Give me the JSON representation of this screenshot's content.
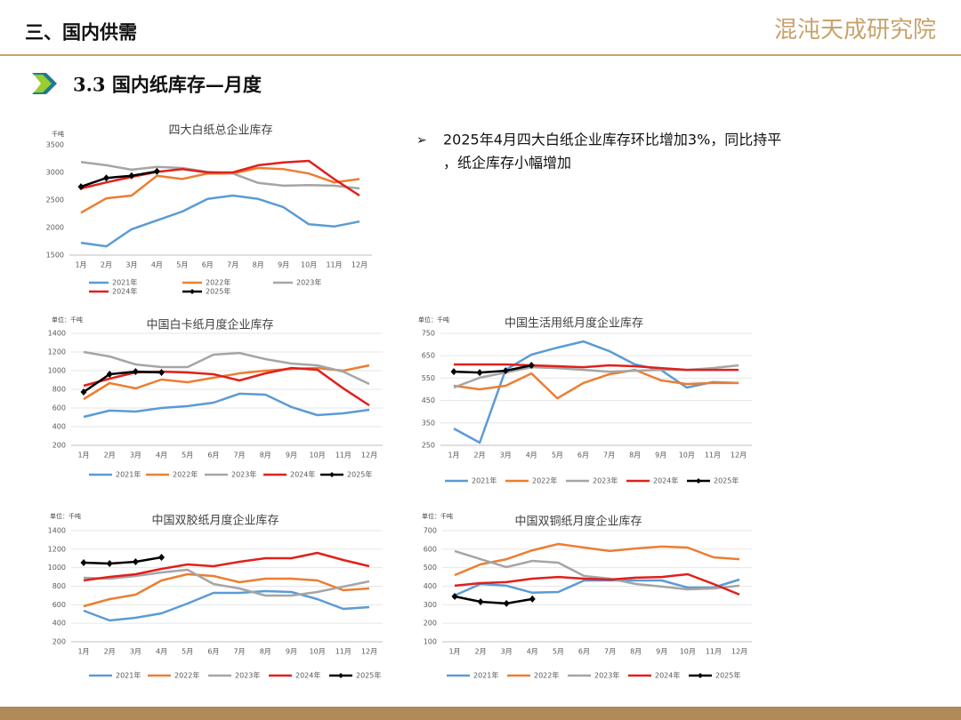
{
  "header": {
    "section": "三、国内供需",
    "brand": "混沌天成研究院",
    "subtitle": "3.3 国内纸库存—月度",
    "note": [
      "2025年4月四大白纸企业库存环比增加3%，同比持平",
      "，纸企库存小幅增加"
    ]
  },
  "chart_data": [
    {
      "type": "line",
      "title": "四大白纸总企业库存",
      "unit": "千吨",
      "categories": [
        "1月",
        "2月",
        "3月",
        "4月",
        "5月",
        "6月",
        "7月",
        "8月",
        "9月",
        "10月",
        "11月",
        "12月"
      ],
      "ylim": [
        1500,
        3500
      ],
      "yticks": [
        1500,
        2000,
        2500,
        3000,
        3500
      ],
      "grid": false,
      "series": [
        {
          "name": "2021年",
          "color": "#5b9bd5",
          "values": [
            1725,
            1660,
            1970,
            2130,
            2290,
            2520,
            2580,
            2520,
            2370,
            2060,
            2020,
            2110
          ]
        },
        {
          "name": "2022年",
          "color": "#ed7d31",
          "values": [
            2270,
            2530,
            2580,
            2940,
            2880,
            2980,
            2980,
            3080,
            3060,
            2980,
            2820,
            2880
          ]
        },
        {
          "name": "2023年",
          "color": "#a5a5a5",
          "values": [
            3190,
            3130,
            3050,
            3100,
            3080,
            3010,
            2980,
            2810,
            2760,
            2770,
            2760,
            2710
          ]
        },
        {
          "name": "2024年",
          "color": "#e0201b",
          "values": [
            2710,
            2820,
            2920,
            3010,
            3060,
            3000,
            3000,
            3130,
            3180,
            3210,
            2880,
            2580
          ]
        },
        {
          "name": "2025年",
          "color": "#000000",
          "values": [
            2740,
            2900,
            2940,
            3020,
            null,
            null,
            null,
            null,
            null,
            null,
            null,
            null
          ]
        }
      ]
    },
    {
      "type": "line",
      "title": "中国白卡纸月度企业库存",
      "unit": "单位：千吨",
      "categories": [
        "1月",
        "2月",
        "3月",
        "4月",
        "5月",
        "6月",
        "7月",
        "8月",
        "9月",
        "10月",
        "11月",
        "12月"
      ],
      "ylim": [
        200,
        1400
      ],
      "yticks": [
        200,
        400,
        600,
        800,
        1000,
        1200,
        1400
      ],
      "grid": true,
      "series": [
        {
          "name": "2021年",
          "color": "#5b9bd5",
          "values": [
            505,
            572,
            562,
            600,
            620,
            657,
            753,
            743,
            610,
            524,
            543,
            581
          ]
        },
        {
          "name": "2022年",
          "color": "#ed7d31",
          "values": [
            695,
            867,
            810,
            905,
            876,
            924,
            971,
            1000,
            1019,
            1029,
            1000,
            1057
          ]
        },
        {
          "name": "2023年",
          "color": "#a5a5a5",
          "values": [
            1200,
            1152,
            1067,
            1038,
            1038,
            1171,
            1190,
            1124,
            1076,
            1057,
            990,
            857
          ]
        },
        {
          "name": "2024年",
          "color": "#e0201b",
          "values": [
            838,
            914,
            981,
            990,
            981,
            962,
            895,
            971,
            1029,
            1010,
            810,
            629
          ]
        },
        {
          "name": "2025年",
          "color": "#000000",
          "values": [
            771,
            962,
            990,
            981,
            null,
            null,
            null,
            null,
            null,
            null,
            null,
            null
          ]
        }
      ]
    },
    {
      "type": "line",
      "title": "中国生活用纸月度企业库存",
      "unit": "单位：千吨",
      "categories": [
        "1月",
        "2月",
        "3月",
        "4月",
        "5月",
        "6月",
        "7月",
        "8月",
        "9月",
        "10月",
        "11月",
        "12月"
      ],
      "ylim": [
        250,
        750
      ],
      "yticks": [
        250,
        350,
        450,
        550,
        650,
        750
      ],
      "grid": true,
      "series": [
        {
          "name": "2021年",
          "color": "#5b9bd5",
          "values": [
            325,
            262,
            587,
            655,
            686,
            714,
            671,
            611,
            587,
            508,
            532,
            528
          ]
        },
        {
          "name": "2022年",
          "color": "#ed7d31",
          "values": [
            516,
            500,
            516,
            571,
            460,
            528,
            567,
            587,
            540,
            524,
            528,
            528
          ]
        },
        {
          "name": "2023年",
          "color": "#a5a5a5",
          "values": [
            508,
            552,
            575,
            599,
            595,
            587,
            579,
            583,
            587,
            587,
            595,
            607
          ]
        },
        {
          "name": "2024年",
          "color": "#e0201b",
          "values": [
            611,
            611,
            611,
            607,
            603,
            599,
            607,
            603,
            595,
            587,
            587,
            587
          ]
        },
        {
          "name": "2025年",
          "color": "#000000",
          "values": [
            579,
            575,
            583,
            607,
            null,
            null,
            null,
            null,
            null,
            null,
            null,
            null
          ]
        }
      ]
    },
    {
      "type": "line",
      "title": "中国双胶纸月度企业库存",
      "unit": "单位：千吨",
      "categories": [
        "1月",
        "2月",
        "3月",
        "4月",
        "5月",
        "6月",
        "7月",
        "8月",
        "9月",
        "10月",
        "11月",
        "12月"
      ],
      "ylim": [
        200,
        1400
      ],
      "yticks": [
        200,
        400,
        600,
        800,
        1000,
        1200,
        1400
      ],
      "grid": true,
      "series": [
        {
          "name": "2021年",
          "color": "#5b9bd5",
          "values": [
            536,
            430,
            459,
            507,
            613,
            728,
            728,
            747,
            738,
            661,
            555,
            574
          ]
        },
        {
          "name": "2022年",
          "color": "#ed7d31",
          "values": [
            584,
            661,
            709,
            862,
            930,
            910,
            843,
            882,
            882,
            862,
            757,
            776
          ]
        },
        {
          "name": "2023年",
          "color": "#a5a5a5",
          "values": [
            891,
            882,
            910,
            949,
            978,
            824,
            776,
            699,
            699,
            738,
            795,
            853
          ]
        },
        {
          "name": "2024年",
          "color": "#e0201b",
          "values": [
            862,
            901,
            930,
            987,
            1035,
            1016,
            1064,
            1102,
            1102,
            1160,
            1083,
            1016
          ]
        },
        {
          "name": "2025年",
          "color": "#000000",
          "values": [
            1054,
            1045,
            1064,
            1112,
            null,
            null,
            null,
            null,
            null,
            null,
            null,
            null
          ]
        }
      ]
    },
    {
      "type": "line",
      "title": "中国双铜纸月度企业库存",
      "unit": "单位：千吨",
      "categories": [
        "1月",
        "2月",
        "3月",
        "4月",
        "5月",
        "6月",
        "7月",
        "8月",
        "9月",
        "10月",
        "11月",
        "12月"
      ],
      "ylim": [
        100,
        700
      ],
      "yticks": [
        100,
        200,
        300,
        400,
        500,
        600,
        700
      ],
      "grid": true,
      "series": [
        {
          "name": "2021年",
          "color": "#5b9bd5",
          "values": [
            350,
            412,
            403,
            365,
            369,
            431,
            431,
            431,
            431,
            393,
            393,
            436
          ]
        },
        {
          "name": "2022年",
          "color": "#ed7d31",
          "values": [
            460,
            518,
            546,
            594,
            628,
            609,
            590,
            604,
            614,
            609,
            556,
            546
          ]
        },
        {
          "name": "2023年",
          "color": "#a5a5a5",
          "values": [
            590,
            546,
            503,
            537,
            527,
            455,
            441,
            412,
            398,
            383,
            388,
            403
          ]
        },
        {
          "name": "2024年",
          "color": "#e0201b",
          "values": [
            403,
            417,
            422,
            441,
            450,
            441,
            436,
            446,
            450,
            465,
            412,
            355
          ]
        },
        {
          "name": "2025年",
          "color": "#000000",
          "values": [
            345,
            316,
            307,
            331,
            null,
            null,
            null,
            null,
            null,
            null,
            null,
            null
          ]
        }
      ]
    }
  ]
}
